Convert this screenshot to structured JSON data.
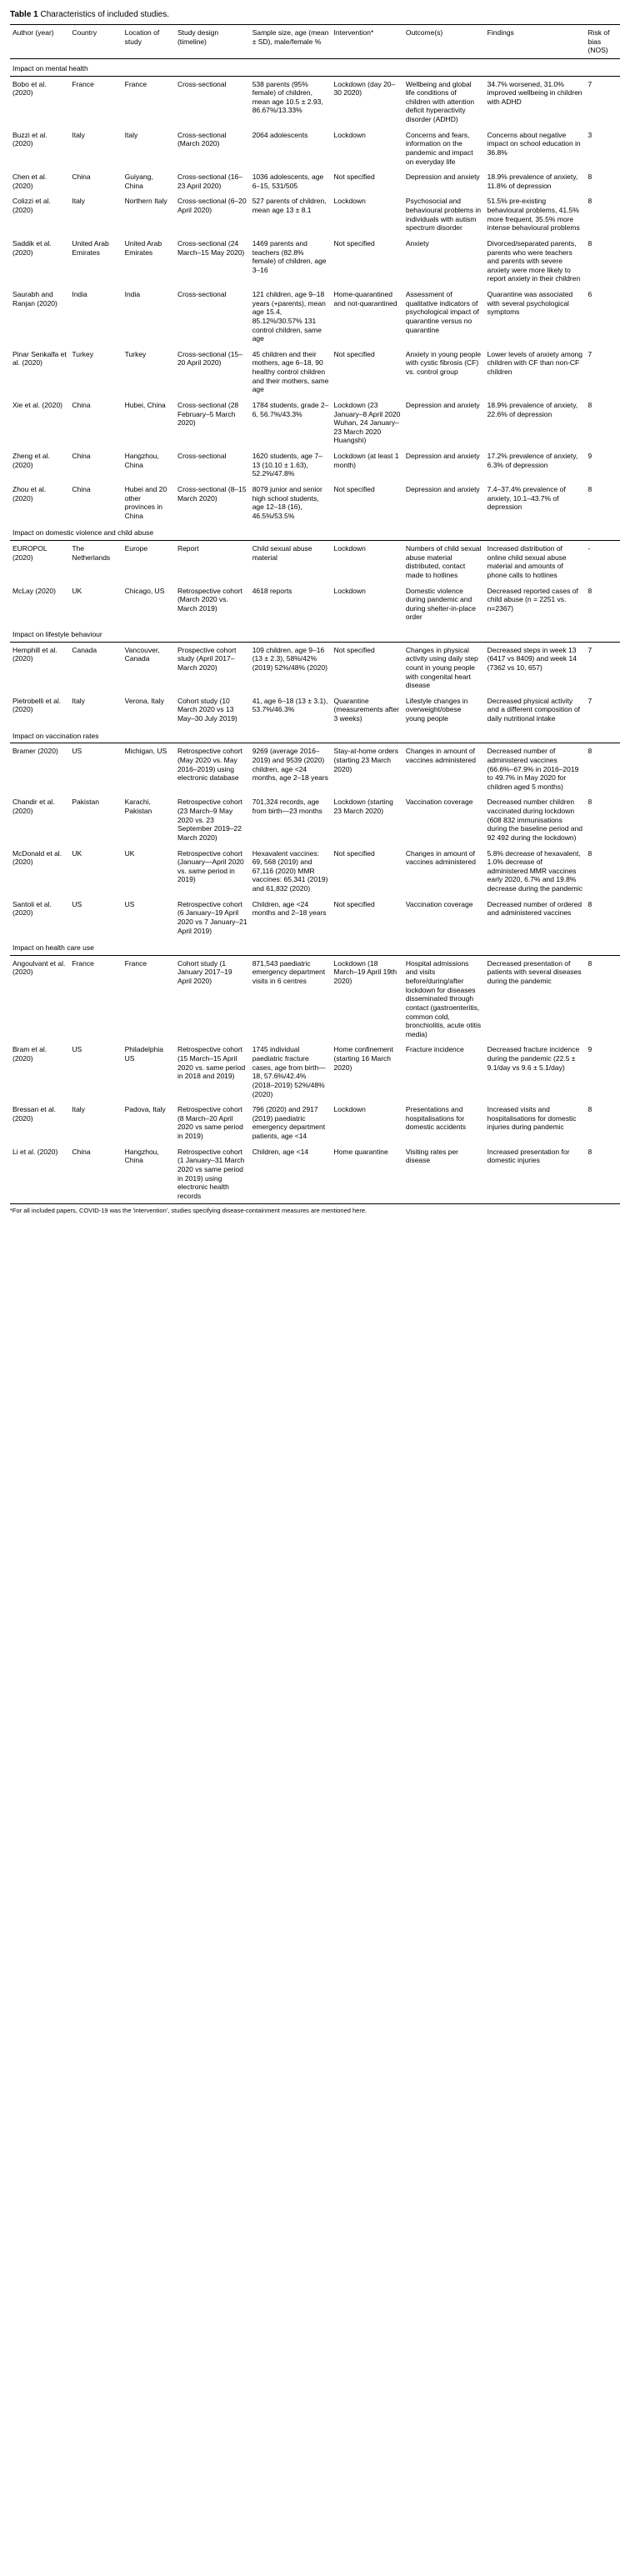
{
  "title_label": "Table 1",
  "title_text": "Characteristics of included studies.",
  "footnote": "*For all included papers, COVID-19 was the 'intervention', studies specifying disease-containment measures are mentioned here.",
  "columns": [
    "Author (year)",
    "Country",
    "Location of study",
    "Study design (timeline)",
    "Sample size, age (mean ± SD), male/female %",
    "Intervention*",
    "Outcome(s)",
    "Findings",
    "Risk of bias (NOS)"
  ],
  "sections": [
    {
      "label": "Impact on mental health",
      "rows": [
        [
          "Bobo et al. (2020)",
          "France",
          "France",
          "Cross-sectional",
          "538 parents (95% female) of children, mean age 10.5 ± 2.93, 86.67%/13.33%",
          "Lockdown (day 20–30 2020)",
          "Wellbeing and global life conditions of children with attention deficit hyperactivity disorder (ADHD)",
          "34.7% worsened, 31.0% improved wellbeing in children with ADHD",
          "7"
        ],
        [
          "Buzzi et al. (2020)",
          "Italy",
          "Italy",
          "Cross-sectional (March 2020)",
          "2064 adolescents",
          "Lockdown",
          "Concerns and fears, information on the pandemic and impact on everyday life",
          "Concerns about negative impact on school education in 36.8%",
          "3"
        ],
        [
          "Chen et al. (2020)",
          "China",
          "Guiyang, China",
          "Cross-sectional (16–23 April 2020)",
          "1036 adolescents, age 6–15, 531/505",
          "Not specified",
          "Depression and anxiety",
          "18.9% prevalence of anxiety, 11.8% of depression",
          "8"
        ],
        [
          "Colizzi et al. (2020)",
          "Italy",
          "Northern Italy",
          "Cross-sectional (6–20 April 2020)",
          "527 parents of children, mean age 13 ± 8.1",
          "Lockdown",
          "Psychosocial and behavioural problems in individuals with autism spectrum disorder",
          "51.5% pre-existing behavioural problems, 41.5% more frequent, 35.5% more intense behavioural problems",
          "8"
        ],
        [
          "Saddik et al. (2020)",
          "United Arab Emirates",
          "United Arab Emirates",
          "Cross-sectional (24 March–15 May 2020)",
          "1469 parents and teachers (82.8% female) of children, age 3–16",
          "Not specified",
          "Anxiety",
          "Divorced/separated parents, parents who were teachers and parents with severe anxiety were more likely to report anxiety in their children",
          "8"
        ],
        [
          "Saurabh and Ranjan (2020)",
          "India",
          "India",
          "Cross-sectional",
          "121 children, age 9–18 years (+parents), mean age 15.4, 85.12%/30.57% 131 control children, same age",
          "Home-quarantined and not-quarantined",
          "Assessment of qualitative indicators of psychological impact of quarantine versus no quarantine",
          "Quarantine was associated with several psychological symptoms",
          "6"
        ],
        [
          "Pinar Senkalfa et al. (2020)",
          "Turkey",
          "Turkey",
          "Cross-sectional (15–20 April 2020)",
          "45 children and their mothers, age 6–18, 90 healthy control children and their mothers, same age",
          "Not specified",
          "Anxiety in young people with cystic fibrosis (CF) vs. control group",
          "Lower levels of anxiety among children with CF than non-CF children",
          "7"
        ],
        [
          "Xie et al. (2020)",
          "China",
          "Hubei, China",
          "Cross-sectional (28 February–5 March 2020)",
          "1784 students, grade 2–6, 56.7%/43.3%",
          "Lockdown (23 January–8 April 2020 Wuhan, 24 January–23 March 2020 Huangshi)",
          "Depression and anxiety",
          "18.9% prevalence of anxiety, 22.6% of depression",
          "8"
        ],
        [
          "Zheng et al. (2020)",
          "China",
          "Hangzhou, China",
          "Cross-sectional",
          "1620 students, age 7–13 (10.10 ± 1.63), 52.2%/47.8%",
          "Lockdown (at least 1 month)",
          "Depression and anxiety",
          "17.2% prevalence of anxiety, 6.3% of depression",
          "9"
        ],
        [
          "Zhou et al. (2020)",
          "China",
          "Hubei and 20 other provinces in China",
          "Cross-sectional (8–15 March 2020)",
          "8079 junior and senior high school students, age 12–18 (16), 46.5%/53.5%",
          "Not specified",
          "Depression and anxiety",
          "7.4–37.4% prevalence of anxiety, 10.1–43.7% of depression",
          "8"
        ]
      ]
    },
    {
      "label": "Impact on domestic violence and child abuse",
      "rows": [
        [
          "EUROPOL (2020)",
          "The Netherlands",
          "Europe",
          "Report",
          "Child sexual abuse material",
          "Lockdown",
          "Numbers of child sexual abuse material distributed, contact made to hotlines",
          "Increased distribution of online child sexual abuse material and amounts of phone calls to hotlines",
          "-"
        ],
        [
          "McLay (2020)",
          "UK",
          "Chicago, US",
          "Retrospective cohort (March 2020 vs. March 2019)",
          "4618 reports",
          "Lockdown",
          "Domestic violence during pandemic and during shelter-in-place order",
          "Decreased reported cases of child abuse (n = 2251 vs. n=2367)",
          "8"
        ]
      ]
    },
    {
      "label": "Impact on lifestyle behaviour",
      "rows": [
        [
          "Hemphill et al. (2020)",
          "Canada",
          "Vancouver, Canada",
          "Prospective cohort study (April 2017–March 2020)",
          "109 children, age 9–16 (13 ± 2.3), 58%/42% (2019) 52%/48% (2020)",
          "Not specified",
          "Changes in physical activity using daily step count in young people with congenital heart disease",
          "Decreased steps in week 13 (6417 vs 8409) and week 14 (7362 vs 10, 657)",
          "7"
        ],
        [
          "Pietrobelli et al. (2020)",
          "Italy",
          "Verona, Italy",
          "Cohort study (10 March 2020 vs 13 May–30 July 2019)",
          "41, age 6–18 (13 ± 3.1), 53.7%/46.3%",
          "Quarantine (measurements after 3 weeks)",
          "Lifestyle changes in overweight/obese young people",
          "Decreased physical activity and a different composition of daily nutritional intake",
          "7"
        ]
      ]
    },
    {
      "label": "Impact on vaccination rates",
      "rows": [
        [
          "Bramer (2020)",
          "US",
          "Michigan, US",
          "Retrospective cohort (May 2020 vs. May 2016–2019) using electronic database",
          "9269 (average 2016–2019) and 9539 (2020) children, age <24 months, age 2–18 years",
          "Stay-at-home orders (starting 23 March 2020)",
          "Changes in amount of vaccines administered",
          "Decreased number of administered vaccines (66.6%–67.9% in 2016–2019 to 49.7% in May 2020 for children aged 5 months)",
          "8"
        ],
        [
          "Chandir et al. (2020)",
          "Pakistan",
          "Karachi, Pakistan",
          "Retrospective cohort (23 March–9 May 2020 vs. 23 September 2019–22 March 2020)",
          "701,324 records, age from birth—23 months",
          "Lockdown (starting 23 March 2020)",
          "Vaccination coverage",
          "Decreased number children vaccinated during lockdown (608 832 immunisations during the baseline period and 92 492 during the lockdown)",
          "8"
        ],
        [
          "McDonald et al. (2020)",
          "UK",
          "UK",
          "Retrospective cohort (January—April 2020 vs. same period in 2019)",
          "Hexavalent vaccines: 69, 568 (2019) and 67,116 (2020) MMR vaccines: 65,341 (2019) and 61,832 (2020)",
          "Not specified",
          "Changes in amount of vaccines administered",
          "5.8% decrease of hexavalent, 1.0% decrease of administered MMR vaccines early 2020, 6.7% and 19.8% decrease during the pandemic",
          "8"
        ],
        [
          "Santoli et al. (2020)",
          "US",
          "US",
          "Retrospective cohort (6 January–19 April 2020 vs 7 January–21 April 2019)",
          "Children, age <24 months and 2–18 years",
          "Not specified",
          "Vaccination coverage",
          "Decreased number of ordered and administered vaccines",
          "8"
        ]
      ]
    },
    {
      "label": "Impact on health care use",
      "rows": [
        [
          "Angoulvant et al. (2020)",
          "France",
          "France",
          "Cohort study (1 January 2017–19 April 2020)",
          "871,543 paediatric emergency department visits in 6 centres",
          "Lockdown (18 March–19 April 19th 2020)",
          "Hospital admissions and visits before/during/after lockdown for diseases disseminated through contact (gastroenteritis, common cold, bronchiolitis, acute otitis media)",
          "Decreased presentation of patients with several diseases during the pandemic",
          "8"
        ],
        [
          "Bram et al. (2020)",
          "US",
          "Philadelphia US",
          "Retrospective cohort (15 March–15 April 2020 vs. same period in 2018 and 2019)",
          "1745 individual paediatric fracture cases, age from birth—18, 57.6%/42.4% (2018–2019) 52%/48% (2020)",
          "Home confinement (starting 16 March 2020)",
          "Fracture incidence",
          "Decreased fracture incidence during the pandemic (22.5 ± 9.1/day vs 9.6 ± 5.1/day)",
          "9"
        ],
        [
          "Bressan et al. (2020)",
          "Italy",
          "Padova, Italy",
          "Retrospective cohort (8 March–20 April 2020 vs same period in 2019)",
          "796 (2020) and 2917 (2019) paediatric emergency department patients, age <14",
          "Lockdown",
          "Presentations and hospitalisations for domestic accidents",
          "Increased visits and hospitalisations for domestic injuries during pandemic",
          "8"
        ],
        [
          "Li et al. (2020)",
          "China",
          "Hangzhou, China",
          "Retrospective cohort (1 January–31 March 2020 vs same period in 2019) using electronic health records",
          "Children, age <14",
          "Home quarantine",
          "Visiting rates per disease",
          "Increased presentation for domestic injuries",
          "8"
        ]
      ]
    }
  ]
}
